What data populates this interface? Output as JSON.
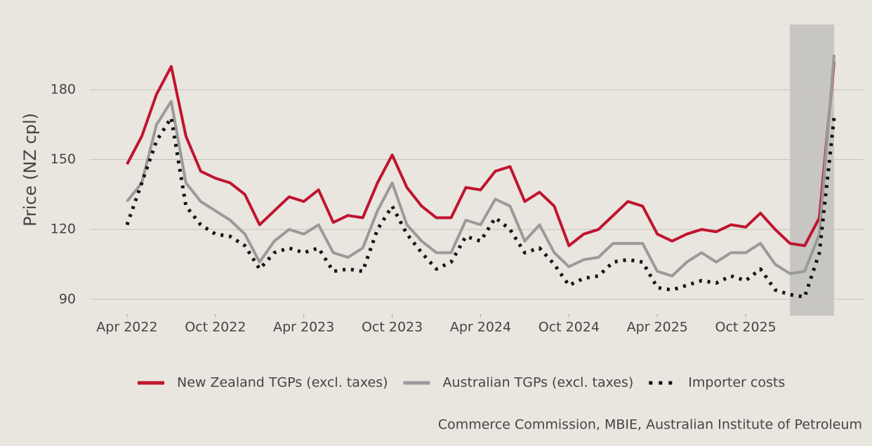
{
  "chart_data": {
    "type": "line",
    "y_label": "Price (NZ cpl)",
    "source": "Commerce Commission, MBIE, Australian Institute of Petroleum",
    "x": [
      "2022-04",
      "2022-05",
      "2022-06",
      "2022-07",
      "2022-08",
      "2022-09",
      "2022-10",
      "2022-11",
      "2022-12",
      "2023-01",
      "2023-02",
      "2023-03",
      "2023-04",
      "2023-05",
      "2023-06",
      "2023-07",
      "2023-08",
      "2023-09",
      "2023-10",
      "2023-11",
      "2023-12",
      "2024-01",
      "2024-02",
      "2024-03",
      "2024-04",
      "2024-05",
      "2024-06",
      "2024-07",
      "2024-08",
      "2024-09",
      "2024-10",
      "2024-11",
      "2024-12",
      "2025-01",
      "2025-02",
      "2025-03",
      "2025-04",
      "2025-05",
      "2025-06",
      "2025-07",
      "2025-08",
      "2025-09",
      "2025-10",
      "2025-11",
      "2025-12",
      "2026-01",
      "2026-02",
      "2026-03",
      "2026-04"
    ],
    "series": [
      {
        "name": "New Zealand TGPs (excl. taxes)",
        "color": "#c0142f",
        "style": "solid",
        "values": [
          148,
          160,
          178,
          190,
          160,
          145,
          142,
          140,
          135,
          122,
          128,
          134,
          132,
          137,
          123,
          126,
          125,
          140,
          152,
          138,
          130,
          125,
          125,
          138,
          137,
          145,
          147,
          132,
          136,
          130,
          113,
          118,
          120,
          126,
          132,
          130,
          118,
          115,
          118,
          120,
          119,
          122,
          121,
          127,
          120,
          114,
          113,
          125,
          192
        ]
      },
      {
        "name": "Australian TGPs (excl. taxes)",
        "color": "#9a9a9a",
        "style": "solid",
        "values": [
          132,
          140,
          165,
          175,
          140,
          132,
          128,
          124,
          118,
          106,
          115,
          120,
          118,
          122,
          110,
          108,
          112,
          128,
          140,
          122,
          115,
          110,
          110,
          124,
          122,
          133,
          130,
          115,
          122,
          110,
          104,
          107,
          108,
          114,
          114,
          114,
          102,
          100,
          106,
          110,
          106,
          110,
          110,
          114,
          105,
          101,
          102,
          118,
          195
        ]
      },
      {
        "name": "Importer costs",
        "color": "#111111",
        "style": "dotted",
        "values": [
          122,
          140,
          158,
          168,
          130,
          122,
          118,
          117,
          113,
          103,
          110,
          112,
          110,
          112,
          102,
          103,
          102,
          120,
          130,
          118,
          110,
          103,
          106,
          117,
          115,
          125,
          120,
          110,
          112,
          105,
          96,
          99,
          100,
          106,
          107,
          106,
          95,
          94,
          96,
          98,
          97,
          100,
          98,
          103,
          94,
          92,
          91,
          110,
          168
        ]
      }
    ],
    "shaded_range": [
      "2026-01",
      "2026-04"
    ],
    "xlim": [
      "2022-01",
      "2026-06"
    ],
    "xticks": [
      {
        "value": "2022-04",
        "label": "Apr 2022"
      },
      {
        "value": "2022-10",
        "label": "Oct 2022"
      },
      {
        "value": "2023-04",
        "label": "Apr 2023"
      },
      {
        "value": "2023-10",
        "label": "Oct 2023"
      },
      {
        "value": "2024-04",
        "label": "Apr 2024"
      },
      {
        "value": "2024-10",
        "label": "Oct 2024"
      },
      {
        "value": "2025-04",
        "label": "Apr 2025"
      },
      {
        "value": "2025-10",
        "label": "Oct 2025"
      }
    ],
    "ylim": [
      83,
      208
    ],
    "yticks": [
      90,
      120,
      150,
      180
    ],
    "grid": true,
    "legend": "bottom"
  }
}
